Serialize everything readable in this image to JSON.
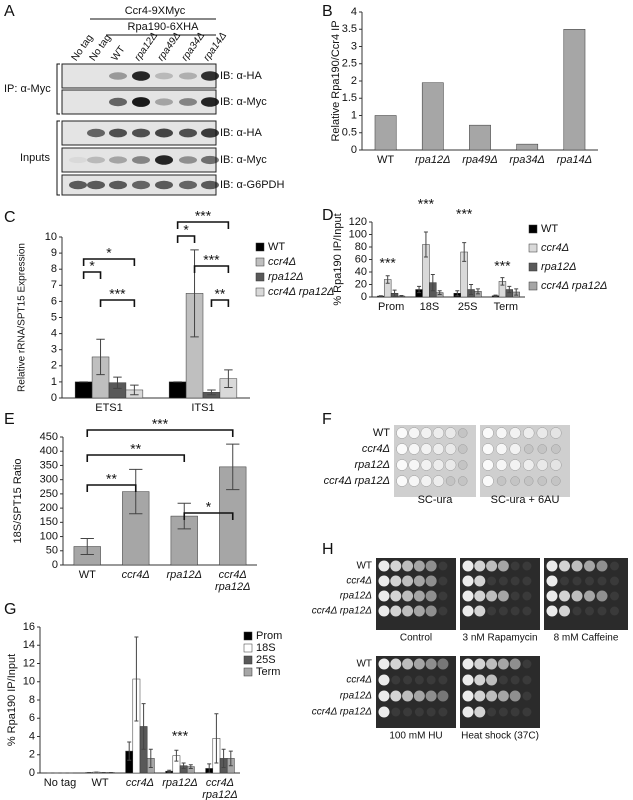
{
  "chart_data": [
    {
      "type": "bar",
      "panel": "B",
      "ylabel": "Relative Rpa190/Ccr4 IP",
      "categories": [
        "WT",
        "rpa12Δ",
        "rpa49Δ",
        "rpa34Δ",
        "rpa14Δ"
      ],
      "values": [
        1,
        1.95,
        0.72,
        0.17,
        3.5
      ],
      "color": "#a6a6a6",
      "ylim": [
        0,
        4
      ],
      "yticks": [
        0,
        0.5,
        1,
        1.5,
        2,
        2.5,
        3,
        3.5,
        4
      ]
    },
    {
      "type": "bar",
      "panel": "C",
      "ylabel": "Relative rRNA/SPT15 Expression",
      "categories": [
        "ETS1",
        "ITS1"
      ],
      "series": [
        {
          "name": "WT",
          "color": "#000000",
          "values": [
            1,
            1
          ],
          "errors": [
            0,
            0
          ]
        },
        {
          "name": "ccr4Δ",
          "color": "#bfbfbf",
          "values": [
            2.55,
            6.5
          ],
          "errors": [
            1.1,
            2.7
          ]
        },
        {
          "name": "rpa12Δ",
          "color": "#595959",
          "values": [
            0.95,
            0.35
          ],
          "errors": [
            0.35,
            0.15
          ]
        },
        {
          "name": "ccr4Δ rpa12Δ",
          "color": "#d9d9d9",
          "values": [
            0.5,
            1.2
          ],
          "errors": [
            0.3,
            0.55
          ]
        }
      ],
      "ylim": [
        0,
        10
      ],
      "yticks": [
        0,
        1,
        2,
        3,
        4,
        5,
        6,
        7,
        8,
        9,
        10
      ],
      "annotations": [
        "*",
        "*",
        "***",
        "***",
        "*",
        "***",
        "**"
      ]
    },
    {
      "type": "bar",
      "panel": "D",
      "ylabel": "% Rpa190 IP/Input",
      "categories": [
        "Prom",
        "18S",
        "25S",
        "Term"
      ],
      "series": [
        {
          "name": "WT",
          "color": "#000000",
          "values": [
            1.5,
            12,
            6,
            2
          ],
          "errors": [
            0.5,
            5,
            4,
            1
          ]
        },
        {
          "name": "ccr4Δ",
          "color": "#d9d9d9",
          "values": [
            28,
            84,
            72,
            25
          ],
          "errors": [
            6,
            20,
            15,
            6
          ]
        },
        {
          "name": "rpa12Δ",
          "color": "#595959",
          "values": [
            6,
            23,
            12,
            12
          ],
          "errors": [
            5,
            13,
            8,
            5
          ]
        },
        {
          "name": "ccr4Δ rpa12Δ",
          "color": "#a6a6a6",
          "values": [
            1.5,
            7,
            9,
            8
          ],
          "errors": [
            1,
            3,
            4,
            5
          ]
        }
      ],
      "ylim": [
        0,
        120
      ],
      "yticks": [
        0,
        20,
        40,
        60,
        80,
        100,
        120
      ],
      "annotations": [
        "***",
        "***",
        "***",
        "***"
      ]
    },
    {
      "type": "bar",
      "panel": "E",
      "ylabel": "18S/SPT15 Ratio",
      "categories": [
        "WT",
        "ccr4Δ",
        "rpa12Δ",
        "ccr4Δ rpa12Δ"
      ],
      "values": [
        65,
        258,
        172,
        345
      ],
      "errors": [
        28,
        78,
        45,
        80
      ],
      "color": "#a6a6a6",
      "ylim": [
        0,
        450
      ],
      "yticks": [
        0,
        50,
        100,
        150,
        200,
        250,
        300,
        350,
        400,
        450
      ],
      "annotations": [
        "***",
        "**",
        "**",
        "*"
      ]
    },
    {
      "type": "bar",
      "panel": "G",
      "ylabel": "% Rpa190 IP/Input",
      "categories": [
        "No tag",
        "WT",
        "ccr4Δ",
        "rpa12Δ",
        "ccr4Δ rpa12Δ"
      ],
      "series": [
        {
          "name": "Prom",
          "color": "#000000",
          "values": [
            0,
            0.05,
            2.4,
            0.2,
            0.5
          ],
          "errors": [
            0,
            0,
            1,
            0.1,
            0.5
          ]
        },
        {
          "name": "18S",
          "color": "#ffffff",
          "values": [
            0,
            0.1,
            10.3,
            1.9,
            3.8
          ],
          "errors": [
            0,
            0,
            4.6,
            0.6,
            2.7
          ]
        },
        {
          "name": "25S",
          "color": "#595959",
          "values": [
            0,
            0.05,
            5.1,
            0.8,
            1.6
          ],
          "errors": [
            0,
            0,
            2.5,
            0.3,
            1
          ]
        },
        {
          "name": "Term",
          "color": "#a6a6a6",
          "values": [
            0,
            0.05,
            1.6,
            0.7,
            1.6
          ],
          "errors": [
            0,
            0,
            1,
            0.2,
            0.8
          ]
        }
      ],
      "ylim": [
        0,
        16
      ],
      "yticks": [
        0,
        2,
        4,
        6,
        8,
        10,
        12,
        14,
        16
      ],
      "annotations": [
        "***"
      ]
    }
  ],
  "blot": {
    "panel": "A",
    "tags": [
      "Ccr4-9XMyc",
      "Rpa190-6XHA"
    ],
    "lanes": [
      "No tag",
      "No tag",
      "WT",
      "rpa12Δ",
      "rpa49Δ",
      "rpa34Δ",
      "rpa14Δ"
    ],
    "groups": [
      "IP: α-Myc",
      "Inputs"
    ],
    "probes": [
      "IB: α-HA",
      "IB: α-Myc",
      "IB: α-HA",
      "IB: α-Myc",
      "IB: α-G6PDH"
    ]
  },
  "growth_f": {
    "panel": "F",
    "strains": [
      "WT",
      "ccr4Δ",
      "rpa12Δ",
      "ccr4Δ rpa12Δ"
    ],
    "plates": [
      "SC-ura",
      "SC-ura + 6AU"
    ]
  },
  "growth_h": {
    "panel": "H",
    "strains": [
      "WT",
      "ccr4Δ",
      "rpa12Δ",
      "ccr4Δ rpa12Δ"
    ],
    "plates": [
      "Control",
      "3 nM Rapamycin",
      "8 mM Caffeine",
      "100 mM HU",
      "Heat shock (37C)"
    ]
  }
}
